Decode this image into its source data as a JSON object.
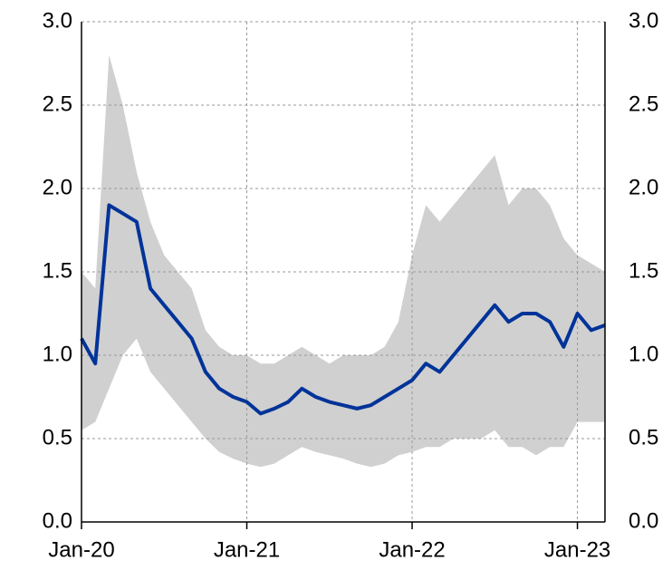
{
  "chart_data": {
    "type": "line",
    "x": [
      "2020-01",
      "2020-02",
      "2020-03",
      "2020-04",
      "2020-05",
      "2020-06",
      "2020-07",
      "2020-08",
      "2020-09",
      "2020-10",
      "2020-11",
      "2020-12",
      "2021-01",
      "2021-02",
      "2021-03",
      "2021-04",
      "2021-05",
      "2021-06",
      "2021-07",
      "2021-08",
      "2021-09",
      "2021-10",
      "2021-11",
      "2021-12",
      "2022-01",
      "2022-02",
      "2022-03",
      "2022-04",
      "2022-05",
      "2022-06",
      "2022-07",
      "2022-08",
      "2022-09",
      "2022-10",
      "2022-11",
      "2022-12",
      "2023-01",
      "2023-02",
      "2023-03"
    ],
    "values": [
      1.1,
      0.95,
      1.9,
      1.85,
      1.8,
      1.4,
      1.3,
      1.2,
      1.1,
      0.9,
      0.8,
      0.75,
      0.72,
      0.65,
      0.68,
      0.72,
      0.8,
      0.75,
      0.72,
      0.7,
      0.68,
      0.7,
      0.75,
      0.8,
      0.85,
      0.95,
      0.9,
      1.0,
      1.1,
      1.2,
      1.3,
      1.2,
      1.25,
      1.25,
      1.2,
      1.05,
      1.25,
      1.15,
      1.18
    ],
    "color": "#003399",
    "band": {
      "color": "#d0d0d0",
      "upper": [
        1.5,
        1.4,
        2.8,
        2.5,
        2.1,
        1.8,
        1.6,
        1.5,
        1.4,
        1.15,
        1.05,
        1.0,
        1.0,
        0.95,
        0.95,
        1.0,
        1.05,
        1.0,
        0.95,
        1.0,
        1.0,
        1.0,
        1.05,
        1.2,
        1.6,
        1.9,
        1.8,
        1.9,
        2.0,
        2.1,
        2.2,
        1.9,
        2.0,
        2.0,
        1.9,
        1.7,
        1.6,
        1.55,
        1.5
      ],
      "lower": [
        0.55,
        0.6,
        0.8,
        1.0,
        1.1,
        0.9,
        0.8,
        0.7,
        0.6,
        0.5,
        0.42,
        0.38,
        0.35,
        0.33,
        0.35,
        0.4,
        0.45,
        0.42,
        0.4,
        0.38,
        0.35,
        0.33,
        0.35,
        0.4,
        0.42,
        0.45,
        0.45,
        0.5,
        0.5,
        0.5,
        0.55,
        0.45,
        0.45,
        0.4,
        0.45,
        0.45,
        0.6,
        0.6,
        0.6
      ]
    },
    "xlim": [
      "2020-01",
      "2023-03"
    ],
    "xticks": [
      {
        "value": "2020-01",
        "label": "Jan-20"
      },
      {
        "value": "2021-01",
        "label": "Jan-21"
      },
      {
        "value": "2022-01",
        "label": "Jan-22"
      },
      {
        "value": "2023-01",
        "label": "Jan-23"
      }
    ],
    "ylim": [
      0,
      3
    ],
    "yticks": [
      {
        "value": 0,
        "label": "0.0"
      },
      {
        "value": 0.5,
        "label": "0.5"
      },
      {
        "value": 1,
        "label": "1.0"
      },
      {
        "value": 1.5,
        "label": "1.5"
      },
      {
        "value": 2,
        "label": "2.0"
      },
      {
        "value": 2.5,
        "label": "2.5"
      },
      {
        "value": 3,
        "label": "3.0"
      }
    ],
    "y2lim": [
      0,
      3
    ],
    "y2ticks": [
      {
        "value": 0,
        "label": "0.0"
      },
      {
        "value": 0.5,
        "label": "0.5"
      },
      {
        "value": 1,
        "label": "1.0"
      },
      {
        "value": 1.5,
        "label": "1.5"
      },
      {
        "value": 2,
        "label": "2.0"
      },
      {
        "value": 2.5,
        "label": "2.5"
      },
      {
        "value": 3,
        "label": "3.0"
      }
    ],
    "grid": true
  }
}
